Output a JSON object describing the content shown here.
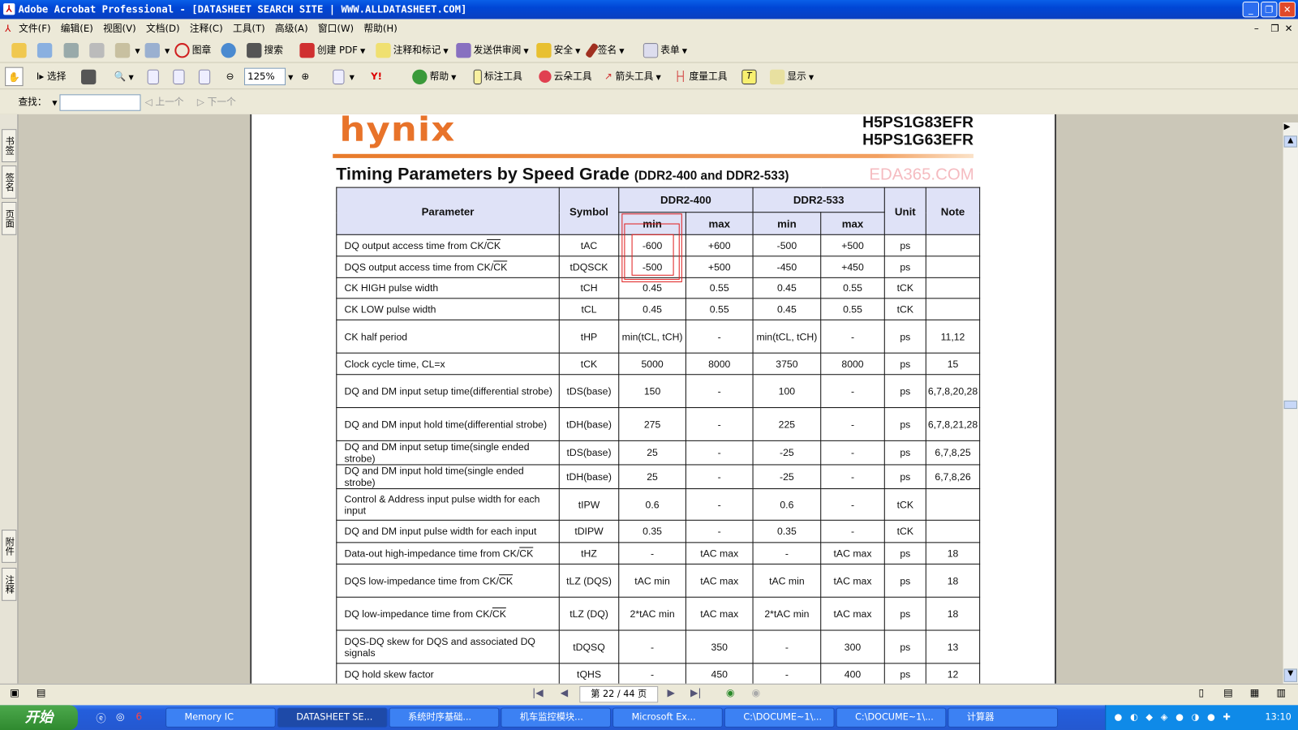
{
  "window": {
    "title": "Adobe Acrobat Professional - [DATASHEET SEARCH SITE | WWW.ALLDATASHEET.COM]",
    "minimize": "_",
    "restore": "❐",
    "close": "✕"
  },
  "menu": [
    "文件(F)",
    "编辑(E)",
    "视图(V)",
    "文档(D)",
    "注释(C)",
    "工具(T)",
    "高级(A)",
    "窗口(W)",
    "帮助(H)"
  ],
  "toolbar1": {
    "stamp": "图章",
    "search": "搜索",
    "create_pdf": "创建 PDF",
    "comment": "注释和标记",
    "review": "发送供审阅",
    "security": "安全",
    "sign": "签名",
    "forms": "表单"
  },
  "toolbar2": {
    "select": "选择",
    "zoom": "125%",
    "help": "帮助",
    "note": "标注工具",
    "cloud": "云朵工具",
    "arrow": "箭头工具",
    "measure": "度量工具",
    "show": "显示"
  },
  "findbar": {
    "label": "查找：",
    "value": "",
    "prev": "上一个",
    "next": "下一个"
  },
  "left_tabs": [
    "书签",
    "签名",
    "页面",
    "附件",
    "注释"
  ],
  "doc": {
    "logo": "hynix",
    "part1": "H5PS1G83EFR",
    "part2": "H5PS1G63EFR",
    "title": "Timing Parameters by Speed Grade",
    "subtitle": "(DDR2-400 and DDR2-533)",
    "headers": {
      "parameter": "Parameter",
      "symbol": "Symbol",
      "g1": "DDR2-400",
      "g2": "DDR2-533",
      "unit": "Unit",
      "note": "Note",
      "min": "min",
      "max": "max"
    },
    "rows": [
      {
        "p": "DQ output access time from CK/",
        "ov": "CK",
        "s": "tAC",
        "v": [
          "-600",
          "+600",
          "-500",
          "+500"
        ],
        "u": "ps",
        "n": ""
      },
      {
        "p": "DQS output access time from CK/",
        "ov": "CK",
        "s": "tDQSCK",
        "v": [
          "-500",
          "+500",
          "-450",
          "+450"
        ],
        "u": "ps",
        "n": ""
      },
      {
        "p": "CK HIGH pulse width",
        "s": "tCH",
        "v": [
          "0.45",
          "0.55",
          "0.45",
          "0.55"
        ],
        "u": "tCK",
        "n": ""
      },
      {
        "p": "CK LOW pulse width",
        "s": "tCL",
        "v": [
          "0.45",
          "0.55",
          "0.45",
          "0.55"
        ],
        "u": "tCK",
        "n": ""
      },
      {
        "p": "CK half period",
        "s": "tHP",
        "v": [
          "min(tCL, tCH)",
          "-",
          "min(tCL, tCH)",
          "-"
        ],
        "u": "ps",
        "n": "11,12"
      },
      {
        "p": "Clock cycle time, CL=x",
        "s": "tCK",
        "v": [
          "5000",
          "8000",
          "3750",
          "8000"
        ],
        "u": "ps",
        "n": "15"
      },
      {
        "p": "DQ and DM input setup time(differential strobe)",
        "s": "tDS(base)",
        "v": [
          "150",
          "-",
          "100",
          "-"
        ],
        "u": "ps",
        "n": "6,7,8,20,28"
      },
      {
        "p": "DQ and DM input hold time(differential strobe)",
        "s": "tDH(base)",
        "v": [
          "275",
          "-",
          "225",
          "-"
        ],
        "u": "ps",
        "n": "6,7,8,21,28"
      },
      {
        "p": "DQ and DM input setup time(single ended strobe)",
        "s": "tDS(base)",
        "v": [
          "25",
          "-",
          "-25",
          "-"
        ],
        "u": "ps",
        "n": "6,7,8,25"
      },
      {
        "p": "DQ and DM input hold time(single ended strobe)",
        "s": "tDH(base)",
        "v": [
          "25",
          "-",
          "-25",
          "-"
        ],
        "u": "ps",
        "n": "6,7,8,26"
      },
      {
        "p": "Control & Address input pulse width for each input",
        "s": "tIPW",
        "v": [
          "0.6",
          "-",
          "0.6",
          "-"
        ],
        "u": "tCK",
        "n": ""
      },
      {
        "p": "DQ and DM input pulse width for each input",
        "s": "tDIPW",
        "v": [
          "0.35",
          "-",
          "0.35",
          "-"
        ],
        "u": "tCK",
        "n": ""
      },
      {
        "p": "Data-out high-impedance time from CK/",
        "ov": "CK",
        "s": "tHZ",
        "v": [
          "-",
          "tAC max",
          "-",
          "tAC max"
        ],
        "u": "ps",
        "n": "18"
      },
      {
        "p": "DQS low-impedance time from CK/",
        "ov": "CK",
        "s": "tLZ (DQS)",
        "v": [
          "tAC min",
          "tAC max",
          "tAC min",
          "tAC max"
        ],
        "u": "ps",
        "n": "18"
      },
      {
        "p": "DQ low-impedance time from CK/",
        "ov": "CK",
        "s": "tLZ (DQ)",
        "v": [
          "2*tAC min",
          "tAC max",
          "2*tAC min",
          "tAC max"
        ],
        "u": "ps",
        "n": "18"
      },
      {
        "p": "DQS-DQ skew for DQS and associated DQ signals",
        "s": "tDQSQ",
        "v": [
          "-",
          "350",
          "-",
          "300"
        ],
        "u": "ps",
        "n": "13"
      },
      {
        "p": "DQ hold skew factor",
        "s": "tQHS",
        "v": [
          "-",
          "450",
          "-",
          "400"
        ],
        "u": "ps",
        "n": "12"
      }
    ],
    "watermark": "EDA365.COM"
  },
  "status": {
    "page": "第 22 / 44 页"
  },
  "taskbar": {
    "start": "开始",
    "tasks": [
      "Memory IC",
      "DATASHEET SE...",
      "系统时序基础...",
      "机车监控模块...",
      "Microsoft Ex...",
      "C:\\DOCUME~1\\...",
      "C:\\DOCUME~1\\...",
      "计算器"
    ],
    "clock": "13:10"
  },
  "colors": {
    "accent": "#e8732a",
    "header_bg": "#dfe2f7",
    "highlight": "#e02020"
  }
}
